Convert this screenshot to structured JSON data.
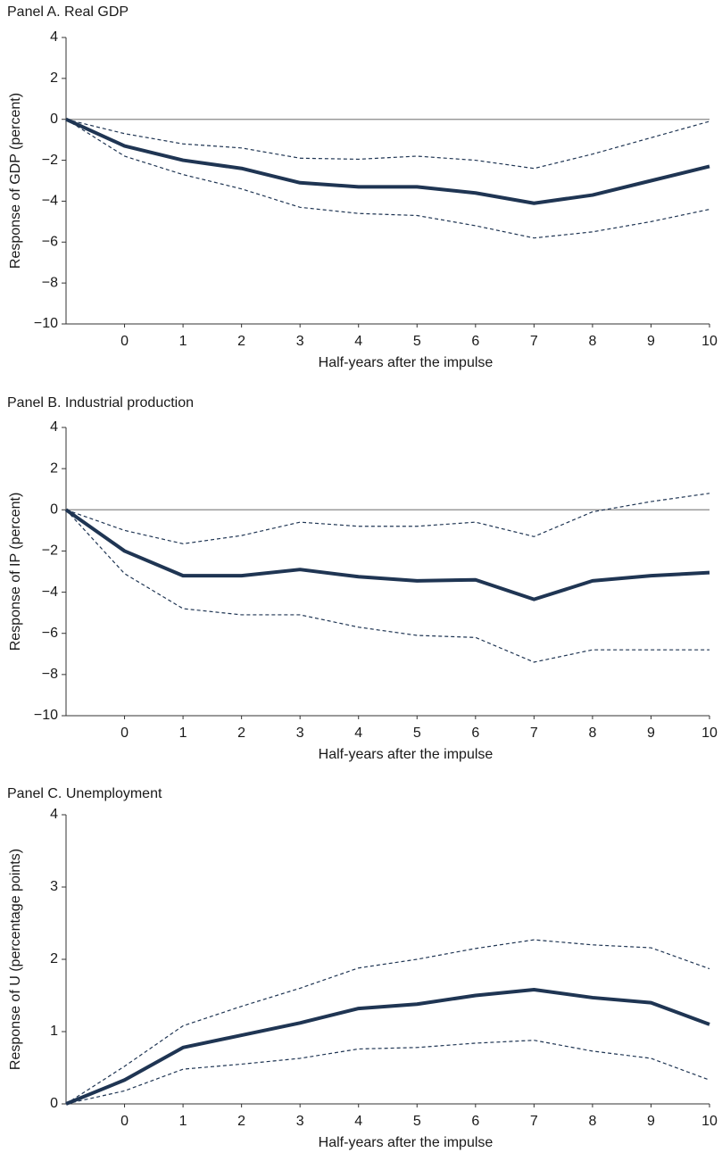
{
  "chart_data": [
    {
      "type": "line",
      "title": "Panel A. Real GDP",
      "y_label": "Response of GDP (percent)",
      "x_label": "Half-years after the impulse",
      "x": [
        -1,
        0,
        1,
        2,
        3,
        4,
        5,
        6,
        7,
        8,
        9,
        10
      ],
      "xlim": [
        -1,
        10
      ],
      "xticks": [
        0,
        1,
        2,
        3,
        4,
        5,
        6,
        7,
        8,
        9,
        10
      ],
      "ylim": [
        -10,
        4
      ],
      "yticks": [
        {
          "value": -10,
          "label": "−10"
        },
        {
          "value": -8,
          "label": "−8"
        },
        {
          "value": -6,
          "label": "−6"
        },
        {
          "value": -4,
          "label": "−4"
        },
        {
          "value": -2,
          "label": "−2"
        },
        0,
        2,
        4
      ],
      "zero_line": true,
      "series": [
        {
          "color": "#1f3553",
          "dashed": false,
          "values": [
            0,
            -1.3,
            -2.0,
            -2.4,
            -3.1,
            -3.3,
            -3.3,
            -3.6,
            -4.1,
            -3.7,
            -3.0,
            -2.3
          ]
        },
        {
          "color": "#1f3553",
          "dashed": true,
          "values": [
            0,
            -0.7,
            -1.2,
            -1.4,
            -1.9,
            -1.95,
            -1.8,
            -2.0,
            -2.4,
            -1.7,
            -0.9,
            -0.1
          ]
        },
        {
          "color": "#1f3553",
          "dashed": true,
          "values": [
            0,
            -1.8,
            -2.7,
            -3.4,
            -4.3,
            -4.6,
            -4.7,
            -5.2,
            -5.8,
            -5.5,
            -5.0,
            -4.4
          ]
        }
      ]
    },
    {
      "type": "line",
      "title": "Panel B. Industrial production",
      "y_label": "Response of IP (percent)",
      "x_label": "Half-years after the impulse",
      "x": [
        -1,
        0,
        1,
        2,
        3,
        4,
        5,
        6,
        7,
        8,
        9,
        10
      ],
      "xlim": [
        -1,
        10
      ],
      "xticks": [
        0,
        1,
        2,
        3,
        4,
        5,
        6,
        7,
        8,
        9,
        10
      ],
      "ylim": [
        -10,
        4
      ],
      "yticks": [
        {
          "value": -10,
          "label": "−10"
        },
        {
          "value": -8,
          "label": "−8"
        },
        {
          "value": -6,
          "label": "−6"
        },
        {
          "value": -4,
          "label": "−4"
        },
        {
          "value": -2,
          "label": "−2"
        },
        0,
        2,
        4
      ],
      "zero_line": true,
      "series": [
        {
          "color": "#1f3553",
          "dashed": false,
          "values": [
            0,
            -2.0,
            -3.2,
            -3.2,
            -2.9,
            -3.25,
            -3.45,
            -3.4,
            -4.35,
            -3.45,
            -3.2,
            -3.05
          ]
        },
        {
          "color": "#1f3553",
          "dashed": true,
          "values": [
            0,
            -1.0,
            -1.65,
            -1.25,
            -0.6,
            -0.8,
            -0.8,
            -0.6,
            -1.3,
            -0.1,
            0.4,
            0.8
          ]
        },
        {
          "color": "#1f3553",
          "dashed": true,
          "values": [
            0,
            -3.1,
            -4.8,
            -5.1,
            -5.1,
            -5.7,
            -6.1,
            -6.2,
            -7.4,
            -6.8,
            -6.8,
            -6.8
          ]
        }
      ]
    },
    {
      "type": "line",
      "title": "Panel C. Unemployment",
      "y_label": "Response of U (percentage points)",
      "x_label": "Half-years after the impulse",
      "x": [
        -1,
        0,
        1,
        2,
        3,
        4,
        5,
        6,
        7,
        8,
        9,
        10
      ],
      "xlim": [
        -1,
        10
      ],
      "xticks": [
        0,
        1,
        2,
        3,
        4,
        5,
        6,
        7,
        8,
        9,
        10
      ],
      "ylim": [
        0,
        4
      ],
      "yticks": [
        0,
        1,
        2,
        3,
        4
      ],
      "zero_line": false,
      "series": [
        {
          "color": "#1f3553",
          "dashed": false,
          "values": [
            0,
            0.33,
            0.78,
            0.95,
            1.12,
            1.32,
            1.38,
            1.5,
            1.58,
            1.47,
            1.4,
            1.1
          ]
        },
        {
          "color": "#1f3553",
          "dashed": true,
          "values": [
            0,
            0.52,
            1.08,
            1.35,
            1.6,
            1.88,
            2.0,
            2.15,
            2.27,
            2.2,
            2.16,
            1.87
          ]
        },
        {
          "color": "#1f3553",
          "dashed": true,
          "values": [
            0,
            0.18,
            0.48,
            0.55,
            0.63,
            0.76,
            0.78,
            0.84,
            0.88,
            0.73,
            0.63,
            0.33
          ]
        }
      ]
    }
  ]
}
